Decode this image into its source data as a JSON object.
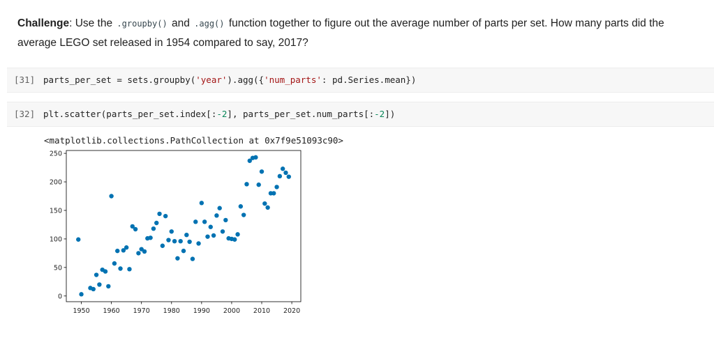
{
  "markdown": {
    "challenge_bold": "Challenge",
    "text_1": ": Use the ",
    "code_1": ".groupby()",
    "text_2": " and ",
    "code_2": ".agg()",
    "text_3": " function together to figure out the average number of parts per set. How many parts did the",
    "text_4": "average LEGO set released in 1954 compared to say, 2017?"
  },
  "cells": [
    {
      "prompt": "[31]",
      "src": {
        "a": "parts_per_set = sets.groupby(",
        "str1": "'year'",
        "b": ").agg({",
        "str2": "'num_parts'",
        "c": ": pd.Series.mean})"
      }
    },
    {
      "prompt": "[32]",
      "src": {
        "a": "plt.scatter(parts_per_set.index[:",
        "num1": "-2",
        "b": "], parts_per_set.num_parts[:",
        "num2": "-2",
        "c": "])"
      }
    }
  ],
  "output_text": "<matplotlib.collections.PathCollection at 0x7f9e51093c90>",
  "chart_data": {
    "type": "scatter",
    "title": "",
    "xlabel": "",
    "ylabel": "",
    "xlim": [
      1945,
      2023
    ],
    "ylim": [
      -10,
      255
    ],
    "xticks": [
      1950,
      1960,
      1970,
      1980,
      1990,
      2000,
      2010,
      2020
    ],
    "yticks": [
      0,
      50,
      100,
      150,
      200,
      250
    ],
    "grid": false,
    "marker_color": "#0072b2",
    "series": [
      {
        "x": [
          1949,
          1950,
          1953,
          1954,
          1955,
          1956,
          1957,
          1958,
          1959,
          1960,
          1961,
          1962,
          1963,
          1964,
          1965,
          1966,
          1967,
          1968,
          1969,
          1970,
          1971,
          1972,
          1973,
          1974,
          1975,
          1976,
          1977,
          1978,
          1979,
          1980,
          1981,
          1982,
          1983,
          1984,
          1985,
          1986,
          1987,
          1988,
          1989,
          1990,
          1991,
          1992,
          1993,
          1994,
          1995,
          1996,
          1997,
          1998,
          1999,
          2000,
          2001,
          2002,
          2003,
          2004,
          2005,
          2006,
          2007,
          2008,
          2009,
          2010,
          2011,
          2012,
          2013,
          2014,
          2015,
          2016,
          2017,
          2018,
          2019
        ],
        "y": [
          99,
          3,
          14,
          12,
          37,
          20,
          46,
          43,
          17,
          175,
          57,
          79,
          48,
          80,
          85,
          47,
          122,
          117,
          75,
          82,
          78,
          101,
          102,
          118,
          128,
          144,
          88,
          140,
          98,
          113,
          96,
          66,
          96,
          79,
          107,
          95,
          65,
          130,
          92,
          163,
          130,
          104,
          121,
          106,
          141,
          154,
          113,
          133,
          101,
          100,
          99,
          108,
          157,
          142,
          196,
          237,
          242,
          243,
          195,
          218,
          162,
          155,
          180,
          180,
          191,
          210,
          223,
          216,
          209
        ]
      }
    ]
  }
}
